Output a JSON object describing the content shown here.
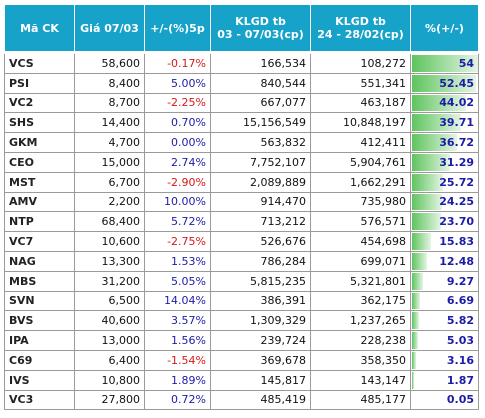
{
  "table": {
    "header": [
      "Mã CK",
      "Giá 07/03",
      "+/-(%)5p",
      "KLGD tb\n03 - 07/03(cp)",
      "KLGD tb\n24 - 28/02(cp)",
      "%(+/-)"
    ],
    "rows": [
      [
        "VCS",
        "58,600",
        "-0.17%",
        "166,534",
        "108,272",
        "54"
      ],
      [
        "PSI",
        "8,400",
        "5.00%",
        "840,544",
        "551,341",
        "52.45"
      ],
      [
        "VC2",
        "8,700",
        "-2.25%",
        "667,077",
        "463,187",
        "44.02"
      ],
      [
        "SHS",
        "14,400",
        "0.70%",
        "15,156,549",
        "10,848,197",
        "39.71"
      ],
      [
        "GKM",
        "4,700",
        "0.00%",
        "563,832",
        "412,411",
        "36.72"
      ],
      [
        "CEO",
        "15,000",
        "2.74%",
        "7,752,107",
        "5,904,761",
        "31.29"
      ],
      [
        "MST",
        "6,700",
        "-2.90%",
        "2,089,889",
        "1,662,291",
        "25.72"
      ],
      [
        "AMV",
        "2,200",
        "10.00%",
        "914,470",
        "735,980",
        "24.25"
      ],
      [
        "NTP",
        "68,400",
        "5.72%",
        "713,212",
        "576,571",
        "23.70"
      ],
      [
        "VC7",
        "10,600",
        "-2.75%",
        "526,676",
        "454,698",
        "15.83"
      ],
      [
        "NAG",
        "13,300",
        "1.53%",
        "786,284",
        "699,071",
        "12.48"
      ],
      [
        "MBS",
        "31,200",
        "5.05%",
        "5,815,235",
        "5,321,801",
        "9.27"
      ],
      [
        "SVN",
        "6,500",
        "14.04%",
        "386,391",
        "362,175",
        "6.69"
      ],
      [
        "BVS",
        "40,600",
        "3.57%",
        "1,309,329",
        "1,237,265",
        "5.82"
      ],
      [
        "IPA",
        "13,000",
        "1.56%",
        "239,724",
        "228,238",
        "5.03"
      ],
      [
        "C69",
        "6,400",
        "-1.54%",
        "369,678",
        "358,350",
        "3.16"
      ],
      [
        "IVS",
        "10,800",
        "1.89%",
        "145,817",
        "143,147",
        "1.87"
      ],
      [
        "VC3",
        "27,800",
        "0.72%",
        "485,419",
        "485,177",
        "0.05"
      ]
    ]
  }
}
